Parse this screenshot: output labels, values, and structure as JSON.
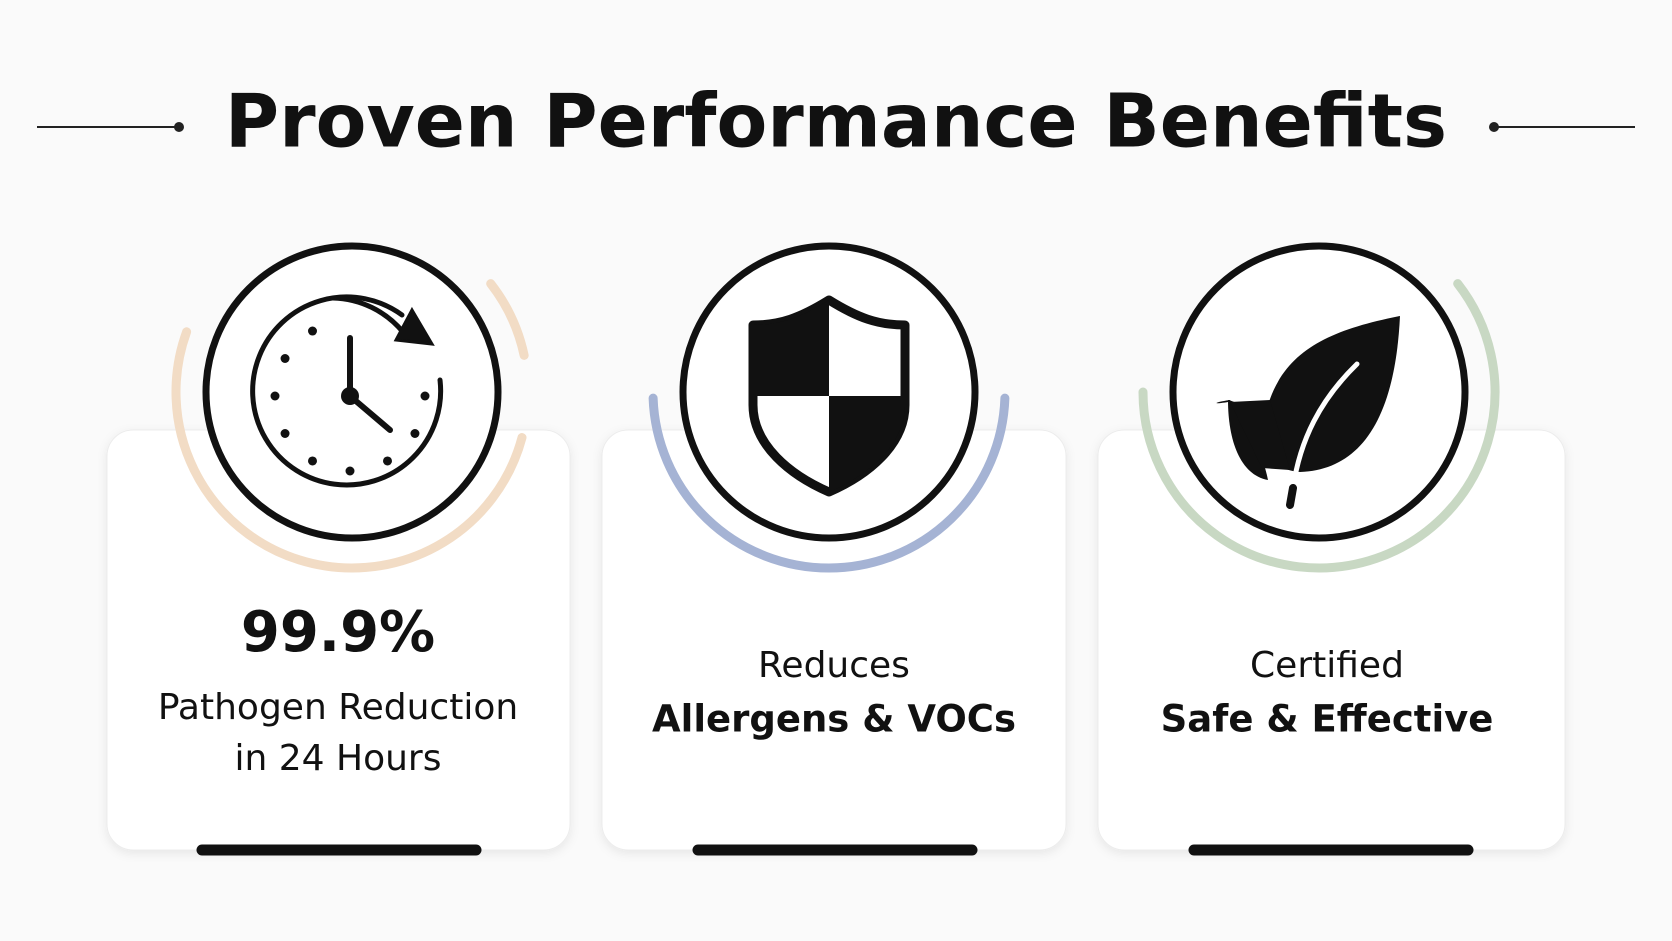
{
  "header": {
    "title": "Proven Performance Benefits"
  },
  "cards": [
    {
      "emphasis": "99.9%",
      "detail": [
        "Pathogen Reduction",
        "in 24 Hours"
      ]
    },
    {
      "detail": [
        "Reduces"
      ],
      "emphasis": "Allergens & VOCs"
    },
    {
      "detail": [
        "Certified"
      ],
      "emphasis": "Safe & Effective"
    }
  ]
}
